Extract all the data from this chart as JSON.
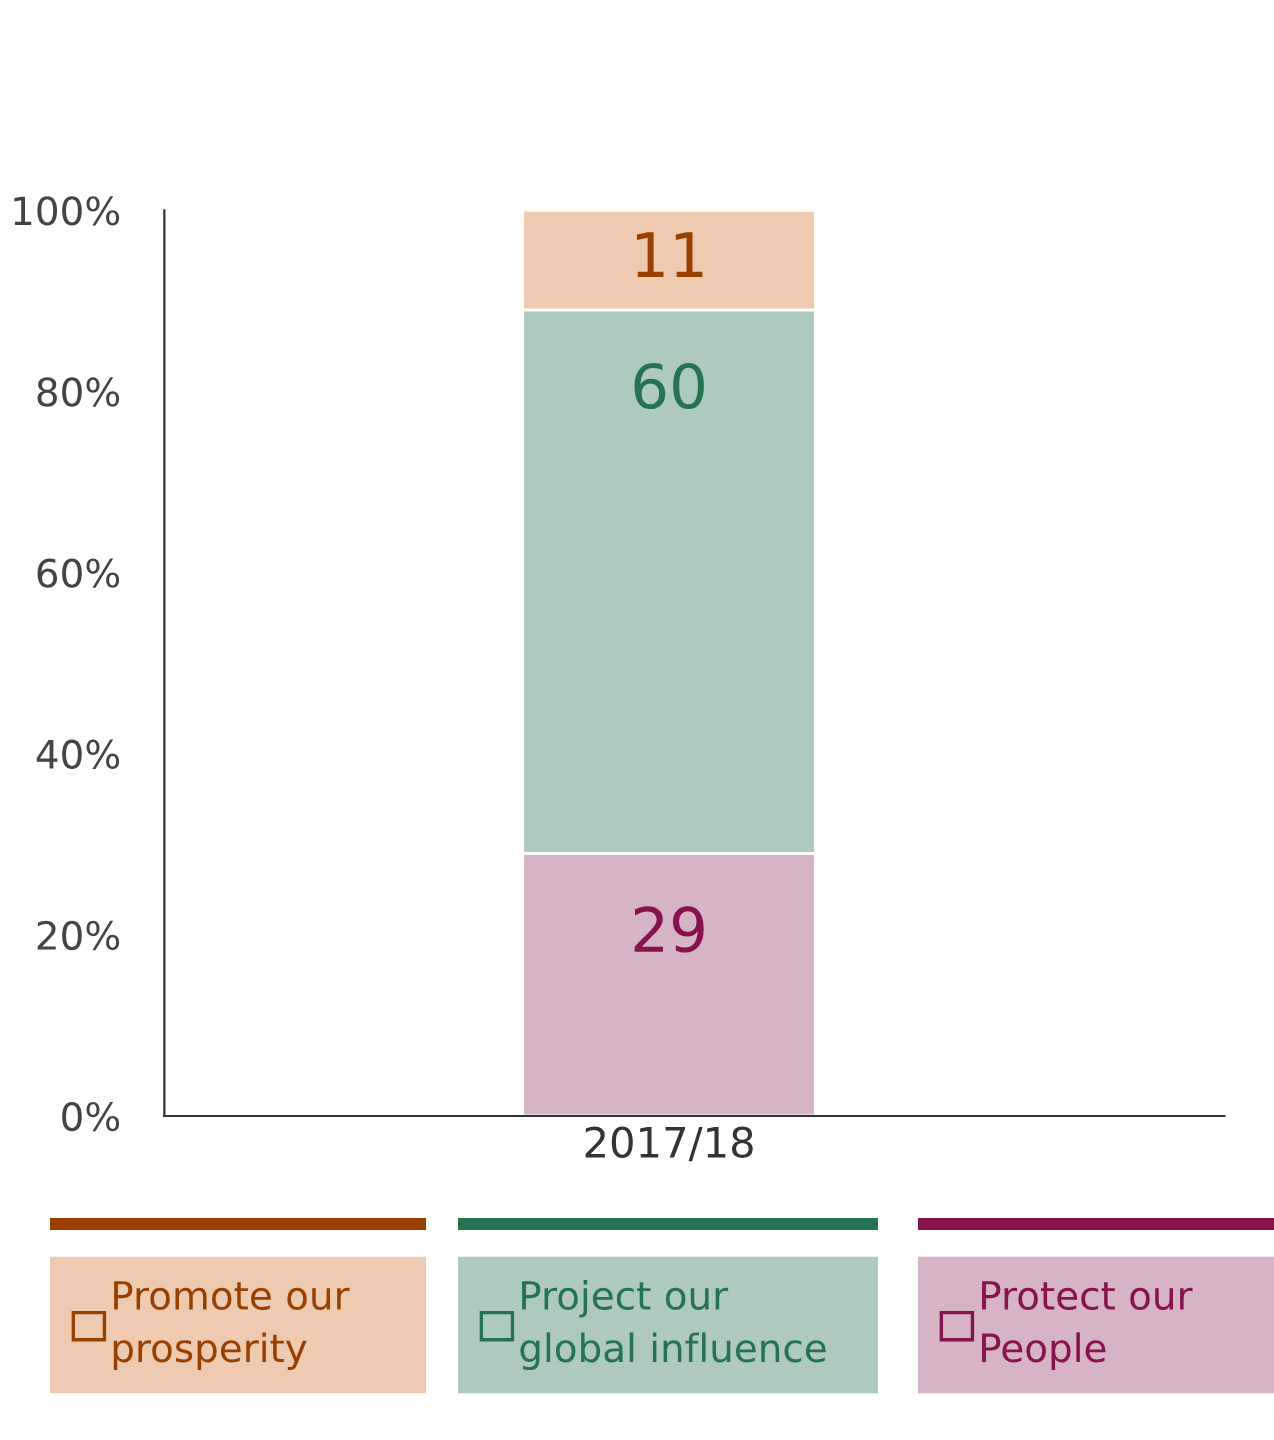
{
  "chart_data": {
    "type": "bar",
    "stacked": true,
    "categories": [
      "2017/18"
    ],
    "series": [
      {
        "name": "Protect our People",
        "color": "#d6b3c5",
        "values": [
          29
        ]
      },
      {
        "name": "Project our global influence",
        "color": "#aec9bd",
        "values": [
          60
        ]
      },
      {
        "name": "Promote our prosperity",
        "color": "#eecab0",
        "values": [
          11
        ]
      }
    ],
    "ylim": [
      0,
      100
    ],
    "yticks": [
      {
        "value": 0,
        "label": "0%"
      },
      {
        "value": 20,
        "label": "20%"
      },
      {
        "value": 40,
        "label": "40%"
      },
      {
        "value": 60,
        "label": "60%"
      },
      {
        "value": 80,
        "label": "80%"
      },
      {
        "value": 100,
        "label": "100%"
      }
    ],
    "data_labels": true,
    "grid": false,
    "legend": "bottom"
  }
}
